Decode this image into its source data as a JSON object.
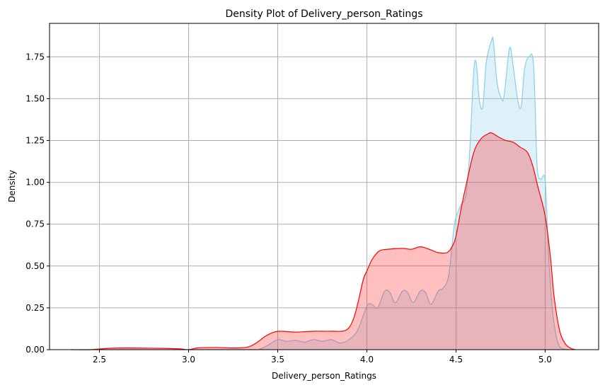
{
  "chart_data": {
    "type": "area",
    "title": "Density Plot of Delivery_person_Ratings",
    "xlabel": "Delivery_person_Ratings",
    "ylabel": "Density",
    "xlim": [
      2.22,
      5.3
    ],
    "ylim": [
      0,
      1.95
    ],
    "grid": true,
    "xticks": [
      2.5,
      3.0,
      3.5,
      4.0,
      4.5,
      5.0
    ],
    "xtick_labels": [
      "2.5",
      "3.0",
      "3.5",
      "4.0",
      "4.5",
      "5.0"
    ],
    "yticks": [
      0,
      0.25,
      0.5,
      0.75,
      1.0,
      1.25,
      1.5,
      1.75
    ],
    "ytick_labels": [
      "0.00",
      "0.25",
      "0.50",
      "0.75",
      "1.00",
      "1.25",
      "1.50",
      "1.75"
    ],
    "series": [
      {
        "color": "#87ceeb",
        "fill": "#87ceeb",
        "fill_opacity": 0.28,
        "x": [
          2.34,
          3.3,
          3.4,
          3.45,
          3.5,
          3.55,
          3.6,
          3.65,
          3.7,
          3.75,
          3.8,
          3.85,
          3.9,
          3.95,
          4.0,
          4.03,
          4.06,
          4.1,
          4.13,
          4.16,
          4.2,
          4.23,
          4.26,
          4.3,
          4.33,
          4.36,
          4.4,
          4.43,
          4.46,
          4.49,
          4.51,
          4.53,
          4.555,
          4.575,
          4.6,
          4.615,
          4.63,
          4.65,
          4.67,
          4.7,
          4.71,
          4.73,
          4.755,
          4.77,
          4.8,
          4.82,
          4.845,
          4.865,
          4.885,
          4.91,
          4.935,
          4.955,
          4.975,
          5.0,
          5.02,
          5.04,
          5.06,
          5.08,
          5.1,
          5.13
        ],
        "y": [
          0,
          0,
          0.005,
          0.03,
          0.06,
          0.05,
          0.055,
          0.045,
          0.06,
          0.05,
          0.06,
          0.04,
          0.06,
          0.12,
          0.26,
          0.27,
          0.25,
          0.35,
          0.34,
          0.28,
          0.35,
          0.34,
          0.28,
          0.35,
          0.34,
          0.27,
          0.35,
          0.37,
          0.45,
          0.74,
          0.82,
          0.87,
          0.92,
          1.15,
          1.67,
          1.7,
          1.5,
          1.45,
          1.72,
          1.85,
          1.84,
          1.6,
          1.5,
          1.52,
          1.8,
          1.7,
          1.5,
          1.45,
          1.68,
          1.75,
          1.7,
          1.1,
          1.02,
          1.01,
          0.55,
          0.25,
          0.09,
          0.02,
          0.005,
          0
        ]
      },
      {
        "color": "#ff0000",
        "fill": "#ff0000",
        "fill_opacity": 0.25,
        "x": [
          2.34,
          2.45,
          2.55,
          2.65,
          2.75,
          2.85,
          2.95,
          3.0,
          3.05,
          3.15,
          3.25,
          3.33,
          3.38,
          3.43,
          3.48,
          3.52,
          3.6,
          3.7,
          3.8,
          3.88,
          3.92,
          3.95,
          3.98,
          4.0,
          4.03,
          4.07,
          4.12,
          4.2,
          4.25,
          4.3,
          4.35,
          4.4,
          4.45,
          4.48,
          4.5,
          4.53,
          4.56,
          4.6,
          4.64,
          4.68,
          4.7,
          4.74,
          4.78,
          4.82,
          4.86,
          4.9,
          4.93,
          4.96,
          5.0,
          5.03,
          5.05,
          5.08,
          5.11,
          5.14,
          5.17
        ],
        "y": [
          0,
          0,
          0.008,
          0.01,
          0.009,
          0.008,
          0.005,
          0,
          0.01,
          0.013,
          0.01,
          0.015,
          0.04,
          0.08,
          0.105,
          0.11,
          0.105,
          0.11,
          0.11,
          0.115,
          0.17,
          0.28,
          0.42,
          0.47,
          0.54,
          0.59,
          0.6,
          0.605,
          0.6,
          0.615,
          0.6,
          0.58,
          0.58,
          0.62,
          0.68,
          0.85,
          1.0,
          1.18,
          1.26,
          1.29,
          1.295,
          1.27,
          1.25,
          1.24,
          1.21,
          1.18,
          1.1,
          0.97,
          0.8,
          0.55,
          0.32,
          0.12,
          0.04,
          0.01,
          0
        ]
      }
    ]
  }
}
